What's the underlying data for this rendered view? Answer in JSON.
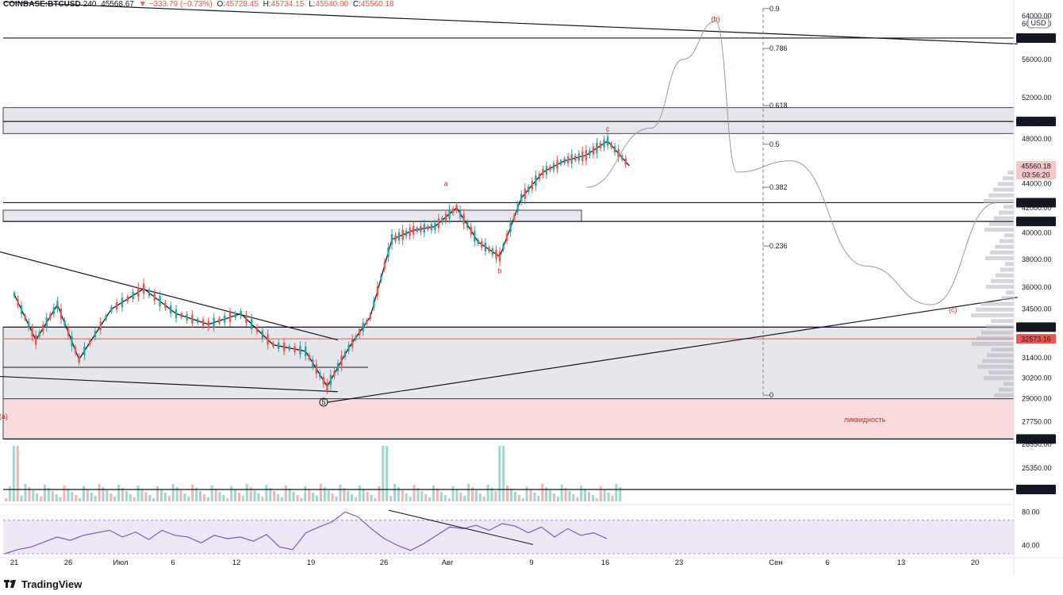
{
  "header": {
    "symbol": "COINBASE:BTCUSD",
    "interval": "240",
    "last": "45568.67",
    "change": "−333.79 (−0.73%)",
    "open_label": "O:",
    "open": "45728.45",
    "high_label": "H:",
    "high": "45734.15",
    "low_label": "L:",
    "low": "45540.00",
    "close_label": "C:",
    "close": "45560.18"
  },
  "brand": "TradingView",
  "colors": {
    "up": "#26a69a",
    "down": "#ef5350",
    "zone_gray": "#d1d4dc",
    "zone_red": "#f8d7da",
    "rsi_band": "#ede7f6",
    "rsi_line": "#7e57c2",
    "wave_label": "#c62828",
    "support_red": "#ef5350"
  },
  "chart_data": {
    "type": "line",
    "price_axis": {
      "unit": "USD",
      "scale": "log",
      "range": [
        24200,
        64000
      ],
      "ticks": [
        "64000.00",
        "60000.00",
        "56000.00",
        "52000.00",
        "48000.00",
        "44000.00",
        "42000.00",
        "40000.00",
        "38000.00",
        "36000.00",
        "34500.00",
        "31400.00",
        "30200.00",
        "29000.00",
        "27750.00",
        "26550.00",
        "25350.00",
        "24200.00"
      ]
    },
    "time_axis": {
      "ticks": [
        "21",
        "26",
        "Июл",
        "6",
        "12",
        "19",
        "26",
        "Авг",
        "9",
        "16",
        "23",
        "Сен",
        "6",
        "13",
        "20"
      ]
    },
    "price_labels": [
      {
        "value": "58367.00",
        "style": "dark"
      },
      {
        "value": "49648.14",
        "style": "dark"
      },
      {
        "value": "45560.18",
        "style": "current"
      },
      {
        "value": "03:56:20",
        "style": "current"
      },
      {
        "value": "42415.87",
        "style": "dark"
      },
      {
        "value": "40900.00",
        "style": "dark"
      },
      {
        "value": "33320.12",
        "style": "dark"
      },
      {
        "value": "32573.16",
        "style": "red"
      },
      {
        "value": "26822.00",
        "style": "dark"
      },
      {
        "value": "24200.00",
        "style": "dark"
      }
    ],
    "horizontal_levels": [
      58367,
      49648.14,
      42415.87,
      40900,
      33320.12,
      32573.16,
      26822,
      24200
    ],
    "zones": [
      {
        "from": 48500,
        "to": 51000,
        "kind": "gray"
      },
      {
        "from": 40900,
        "to": 41800,
        "kind": "gray"
      },
      {
        "from": 29000,
        "to": 33320.12,
        "kind": "gray"
      },
      {
        "from": 26822,
        "to": 29000,
        "kind": "red",
        "label": "ликвидность"
      }
    ],
    "fib": [
      {
        "level": "0.9",
        "price": 61800
      },
      {
        "level": "0.786",
        "price": 57200
      },
      {
        "level": "0.618",
        "price": 51200
      },
      {
        "level": "0.5",
        "price": 47500
      },
      {
        "level": "0.382",
        "price": 43700
      },
      {
        "level": "0.236",
        "price": 39000
      },
      {
        "level": "0",
        "price": 29200
      }
    ],
    "wave_labels": [
      {
        "text": "(a)",
        "x": "Jun 20",
        "price": 27900
      },
      {
        "text": "a",
        "x": "Jul 31",
        "price": 43800
      },
      {
        "text": "b",
        "x": "Aug 5",
        "price": 37000
      },
      {
        "text": "c",
        "x": "Aug 15",
        "price": 48700
      },
      {
        "text": "(b)",
        "x": "Aug 25",
        "price": 60300
      },
      {
        "text": "(c)",
        "x": "Sep 16",
        "price": 34300
      }
    ],
    "wave_marker": "5",
    "price_series": {
      "name": "",
      "x": [
        "Jun 21",
        "Jun 23",
        "Jun 25",
        "Jun 27",
        "Jun 30",
        "Jul 3",
        "Jul 6",
        "Jul 9",
        "Jul 12",
        "Jul 15",
        "Jul 18",
        "Jul 20",
        "Jul 22",
        "Jul 24",
        "Jul 26",
        "Jul 28",
        "Jul 30",
        "Aug 1",
        "Aug 3",
        "Aug 5",
        "Aug 7",
        "Aug 9",
        "Aug 11",
        "Aug 13",
        "Aug 15",
        "Aug 17"
      ],
      "y": [
        35500,
        32500,
        34800,
        31300,
        34500,
        35900,
        34200,
        33500,
        34200,
        32200,
        31800,
        29700,
        32000,
        34000,
        39500,
        40200,
        40500,
        42000,
        39300,
        38200,
        42800,
        45000,
        46000,
        46500,
        47800,
        45560
      ]
    },
    "projection": {
      "x": [
        "Aug 13",
        "Aug 19",
        "Aug 22",
        "Aug 25",
        "Aug 27",
        "Sep 1",
        "Sep 8",
        "Sep 14",
        "Sep 20"
      ],
      "y": [
        43700,
        49000,
        56000,
        60300,
        45000,
        46000,
        37500,
        34800,
        42400
      ]
    },
    "trendlines": [
      {
        "name": "upper-resistance",
        "from": [
          "Jun 20",
          62600
        ],
        "to": [
          "Sep 22",
          57700
        ]
      },
      {
        "name": "rising-support",
        "from": [
          "Jul 20",
          28800
        ],
        "to": [
          "Sep 22",
          35300
        ]
      },
      {
        "name": "wedge-top",
        "from": [
          "Jun 12",
          40200
        ],
        "to": [
          "Jul 21",
          32500
        ]
      },
      {
        "name": "wedge-bottom",
        "from": [
          "Jun 12",
          30500
        ],
        "to": [
          "Jul 21",
          29400
        ]
      }
    ],
    "volume": {
      "spikes": [
        "Jun 22",
        "Jul 26",
        "Aug 6"
      ]
    },
    "rsi": {
      "ticks": [
        "80.00",
        "40.00"
      ],
      "upper": 70,
      "lower": 30,
      "values": [
        30,
        35,
        38,
        44,
        50,
        46,
        52,
        55,
        58,
        50,
        56,
        47,
        58,
        52,
        50,
        43,
        52,
        48,
        50,
        45,
        53,
        38,
        35,
        55,
        62,
        68,
        80,
        74,
        60,
        48,
        40,
        34,
        42,
        52,
        62,
        60,
        64,
        58,
        66,
        63,
        55,
        62,
        50,
        60,
        52,
        55,
        48
      ]
    }
  }
}
